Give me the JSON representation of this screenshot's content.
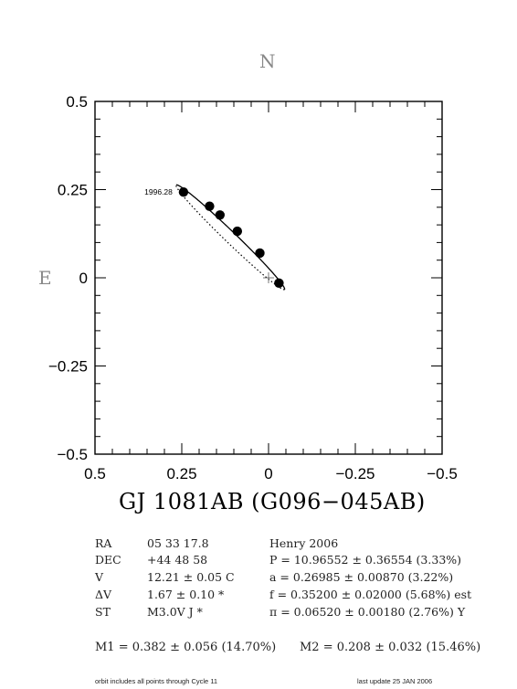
{
  "chart_data": {
    "type": "scatter",
    "title": "GJ 1081AB (G096−045AB)",
    "north_label": "N",
    "east_label": "E",
    "xlim": [
      0.5,
      -0.5
    ],
    "ylim": [
      -0.5,
      0.5
    ],
    "x_ticks": [
      "0.5",
      "0.25",
      "0",
      "−0.25",
      "−0.5"
    ],
    "y_ticks": [
      "0.5",
      "0.25",
      "0",
      "−0.25",
      "−0.5"
    ],
    "grid": false,
    "series": [
      {
        "points": [
          {
            "x": 0.245,
            "y": 0.243
          },
          {
            "x": 0.17,
            "y": 0.203
          },
          {
            "x": 0.14,
            "y": 0.178
          },
          {
            "x": 0.09,
            "y": 0.132
          },
          {
            "x": 0.025,
            "y": 0.07
          },
          {
            "x": -0.03,
            "y": -0.015
          }
        ]
      }
    ],
    "annotations": [
      {
        "text": "1996.28",
        "x": 0.245,
        "y": 0.243
      }
    ],
    "orbit_ellipse": {
      "center_x": 0.11,
      "center_y": 0.115,
      "semi_major": 0.215,
      "semi_minor": 0.016,
      "angle_deg": 43.5
    },
    "primary_marker": {
      "x": 0,
      "y": 0
    }
  },
  "info": {
    "rows": [
      {
        "key": "RA",
        "value": "05 33 17.8",
        "right": "Henry 2006"
      },
      {
        "key": "DEC",
        "value": "+44 48 58",
        "right": "P = 10.96552 ± 0.36554 (3.33%)"
      },
      {
        "key": "V",
        "value": "12.21 ± 0.05 C",
        "right": "a = 0.26985 ± 0.00870 (3.22%)"
      },
      {
        "key": "ΔV",
        "value": "1.67 ± 0.10 *",
        "right": "f = 0.35200 ± 0.02000 (5.68%) est"
      },
      {
        "key": "ST",
        "value": "M3.0V J *",
        "right": "π = 0.06520 ± 0.00180 (2.76%) Y"
      }
    ],
    "m1": "M1 = 0.382 ± 0.056 (14.70%)",
    "m2": "M2 = 0.208 ± 0.032 (15.46%)"
  },
  "footer": {
    "left": "orbit includes all points through Cycle 11",
    "right": "last update 25 JAN 2006"
  }
}
